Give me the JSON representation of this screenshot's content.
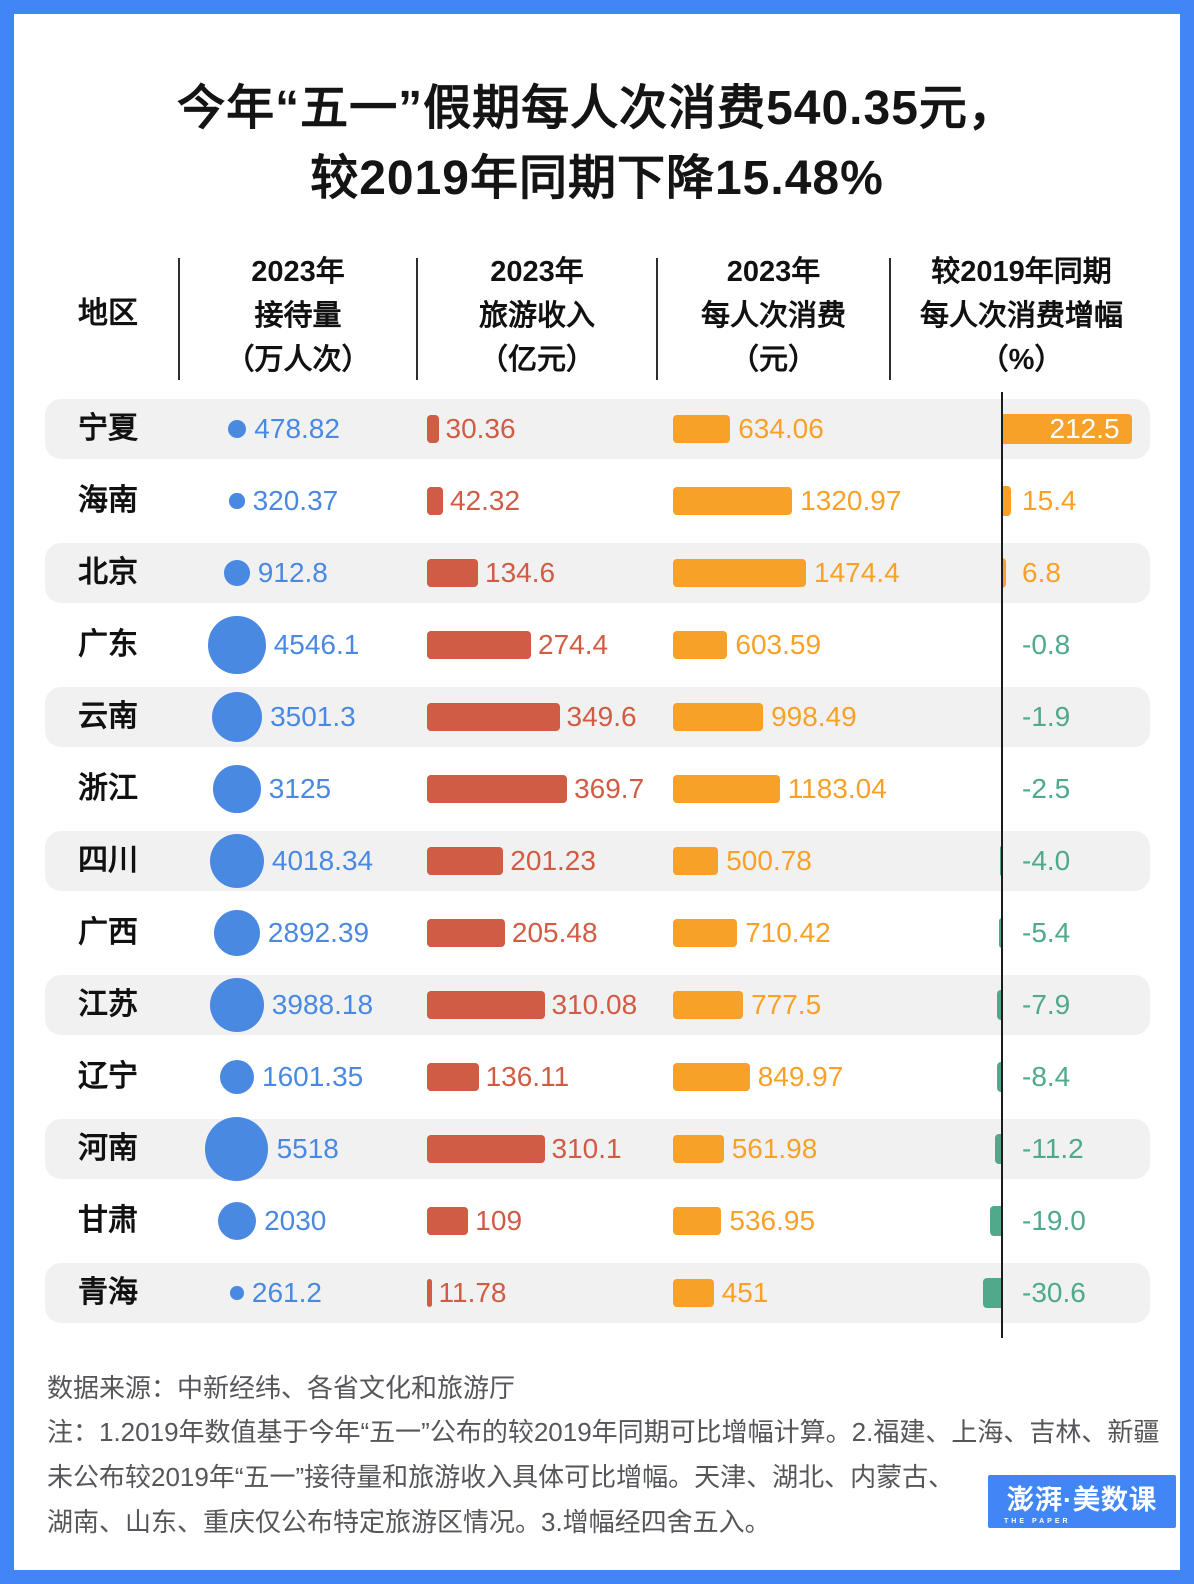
{
  "title": {
    "line1": "今年“五一”假期每人次消费540.35元，",
    "line2": "较2019年同期下降15.48%"
  },
  "table": {
    "columns": [
      {
        "title": "地区"
      },
      {
        "line1": "2023年",
        "line2": "接待量",
        "line3": "（万人次）"
      },
      {
        "line1": "2023年",
        "line2": "旅游收入",
        "line3": "（亿元）"
      },
      {
        "line1": "2023年",
        "line2": "每人次消费",
        "line3": "（元）"
      },
      {
        "line1": "较2019年同期",
        "line2": "每人次消费增幅",
        "line3": "（%）"
      }
    ]
  },
  "chart_data": {
    "type": "table",
    "title": "今年“五一”假期每人次消费540.35元，较2019年同期下降15.48%",
    "columns": [
      "地区",
      "2023年接待量（万人次）",
      "2023年旅游收入（亿元）",
      "2023年每人次消费（元）",
      "较2019年同期每人次消费增幅（%）"
    ],
    "encodings": {
      "reception": "bubble-area-blue",
      "revenue": "bar-red",
      "per_capita": "bar-orange",
      "growth": "diverging-bar-from-zero-axis: positive orange, negative green"
    },
    "rows": [
      {
        "region": "宁夏",
        "reception": 478.82,
        "revenue": 30.36,
        "per_capita": 634.06,
        "growth": 212.5,
        "growth_label": "212.5"
      },
      {
        "region": "海南",
        "reception": 320.37,
        "revenue": 42.32,
        "per_capita": 1320.97,
        "growth": 15.4,
        "growth_label": "15.4"
      },
      {
        "region": "北京",
        "reception": 912.8,
        "revenue": 134.6,
        "per_capita": 1474.4,
        "growth": 6.8,
        "growth_label": "6.8"
      },
      {
        "region": "广东",
        "reception": 4546.1,
        "revenue": 274.4,
        "per_capita": 603.59,
        "growth": -0.8,
        "growth_label": "-0.8"
      },
      {
        "region": "云南",
        "reception": 3501.3,
        "revenue": 349.6,
        "per_capita": 998.49,
        "growth": -1.9,
        "growth_label": "-1.9"
      },
      {
        "region": "浙江",
        "reception": 3125,
        "revenue": 369.7,
        "per_capita": 1183.04,
        "growth": -2.5,
        "growth_label": "-2.5"
      },
      {
        "region": "四川",
        "reception": 4018.34,
        "revenue": 201.23,
        "per_capita": 500.78,
        "growth": -4.0,
        "growth_label": "-4.0"
      },
      {
        "region": "广西",
        "reception": 2892.39,
        "revenue": 205.48,
        "per_capita": 710.42,
        "growth": -5.4,
        "growth_label": "-5.4"
      },
      {
        "region": "江苏",
        "reception": 3988.18,
        "revenue": 310.08,
        "per_capita": 777.5,
        "growth": -7.9,
        "growth_label": "-7.9"
      },
      {
        "region": "辽宁",
        "reception": 1601.35,
        "revenue": 136.11,
        "per_capita": 849.97,
        "growth": -8.4,
        "growth_label": "-8.4"
      },
      {
        "region": "河南",
        "reception": 5518,
        "revenue": 310.1,
        "per_capita": 561.98,
        "growth": -11.2,
        "growth_label": "-11.2"
      },
      {
        "region": "甘肃",
        "reception": 2030,
        "revenue": 109,
        "per_capita": 536.95,
        "growth": -19.0,
        "growth_label": "-19.0"
      },
      {
        "region": "青海",
        "reception": 261.2,
        "revenue": 11.78,
        "per_capita": 451,
        "growth": -30.6,
        "growth_label": "-30.6"
      }
    ]
  },
  "footer": {
    "source": "数据来源：中新经纬、各省文化和旅游厅",
    "note_lines": [
      "注：1.2019年数值基于今年“五一”公布的较2019年同期可比增幅计算。2.福建、上海、吉林、新疆",
      "未公布较2019年“五一”接待量和旅游收入具体可比增幅。天津、湖北、内蒙古、",
      "湖南、山东、重庆仅公布特定旅游区情况。3.增幅经四舍五入。"
    ]
  },
  "logo": {
    "brand": "澎湃·美数课",
    "sub": "THE PAPER"
  },
  "colors": {
    "frame": "#4285f4",
    "bubble": "#4a89e2",
    "revenue_bar": "#d05c43",
    "per_capita_bar": "#f7a128",
    "growth_positive": "#f7a128",
    "growth_negative": "#4fa98a",
    "row_stripe": "#f1f1f2",
    "axis": "#1b1b1b"
  }
}
